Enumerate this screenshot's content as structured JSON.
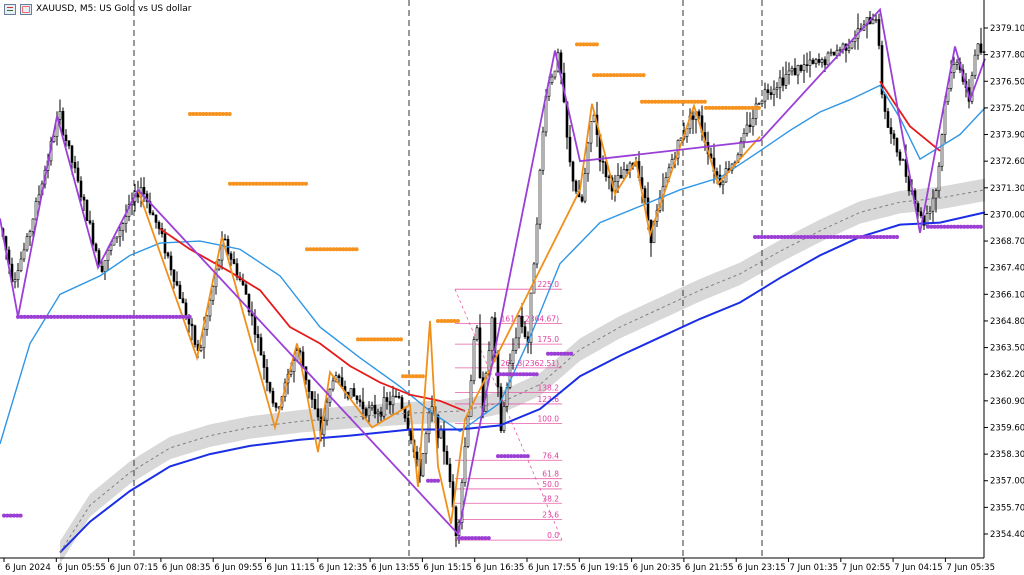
{
  "title": {
    "text": "XAUUSD, M5:  US Gold vs US dollar"
  },
  "chart_data": {
    "type": "candlestick",
    "title": "XAUUSD, M5:  US Gold vs US dollar",
    "ylim": [
      2353.5,
      2380.2
    ],
    "y_ticks": [
      "2379.10",
      "2377.80",
      "2376.50",
      "2375.20",
      "2373.90",
      "2372.60",
      "2371.30",
      "2370.00",
      "2368.70",
      "2367.40",
      "2366.10",
      "2364.80",
      "2363.50",
      "2362.20",
      "2360.90",
      "2359.60",
      "2358.30",
      "2357.00",
      "2355.70",
      "2354.40"
    ],
    "x_ticks": [
      "6 Jun 2024",
      "6 Jun 05:55",
      "6 Jun 07:15",
      "6 Jun 08:35",
      "6 Jun 09:55",
      "6 Jun 11:15",
      "6 Jun 12:35",
      "6 Jun 13:55",
      "6 Jun 15:15",
      "6 Jun 16:35",
      "6 Jun 17:55",
      "6 Jun 19:15",
      "6 Jun 20:35",
      "6 Jun 21:55",
      "6 Jun 23:15",
      "7 Jun 01:35",
      "7 Jun 02:55",
      "7 Jun 04:15",
      "7 Jun 05:35"
    ],
    "session_separators_at_bar": [
      134,
      409,
      683,
      762
    ],
    "price_series_anchors": [
      [
        0,
        2369.3
      ],
      [
        12,
        2366.8
      ],
      [
        25,
        2368.5
      ],
      [
        58,
        2374.9
      ],
      [
        100,
        2367.4
      ],
      [
        140,
        2371.4
      ],
      [
        160,
        2369.0
      ],
      [
        198,
        2363.1
      ],
      [
        222,
        2368.8
      ],
      [
        245,
        2366.1
      ],
      [
        275,
        2360.3
      ],
      [
        297,
        2363.5
      ],
      [
        320,
        2359.3
      ],
      [
        332,
        2362.1
      ],
      [
        370,
        2360.3
      ],
      [
        398,
        2361.1
      ],
      [
        408,
        2359.6
      ],
      [
        418,
        2357.2
      ],
      [
        430,
        2360.6
      ],
      [
        445,
        2358.3
      ],
      [
        456,
        2354.2
      ],
      [
        475,
        2364.8
      ],
      [
        482,
        2360.6
      ],
      [
        491,
        2364.8
      ],
      [
        500,
        2359.5
      ],
      [
        507,
        2362.0
      ],
      [
        518,
        2365.0
      ],
      [
        527,
        2363.8
      ],
      [
        545,
        2376.0
      ],
      [
        558,
        2377.8
      ],
      [
        568,
        2372.6
      ],
      [
        580,
        2370.2
      ],
      [
        592,
        2375.3
      ],
      [
        600,
        2372.5
      ],
      [
        612,
        2371.3
      ],
      [
        636,
        2372.7
      ],
      [
        650,
        2369.0
      ],
      [
        670,
        2372.6
      ],
      [
        694,
        2375.2
      ],
      [
        718,
        2371.6
      ],
      [
        735,
        2372.8
      ],
      [
        760,
        2375.8
      ],
      [
        790,
        2377.0
      ],
      [
        820,
        2377.4
      ],
      [
        850,
        2378.5
      ],
      [
        876,
        2379.8
      ],
      [
        880,
        2376.3
      ],
      [
        888,
        2374.0
      ],
      [
        900,
        2372.7
      ],
      [
        910,
        2371.3
      ],
      [
        922,
        2369.5
      ],
      [
        936,
        2371.4
      ],
      [
        945,
        2376.0
      ],
      [
        957,
        2377.8
      ],
      [
        967,
        2375.3
      ],
      [
        975,
        2378.3
      ],
      [
        985,
        2377.6
      ]
    ],
    "series": [
      {
        "name": "",
        "kind": "ema_light_blue",
        "color": "#2f96e6",
        "points": [
          [
            0,
            2358.8
          ],
          [
            30,
            2363.7
          ],
          [
            60,
            2366.1
          ],
          [
            100,
            2367.0
          ],
          [
            130,
            2368.0
          ],
          [
            160,
            2368.6
          ],
          [
            200,
            2368.7
          ],
          [
            240,
            2368.3
          ],
          [
            280,
            2367.0
          ],
          [
            320,
            2364.5
          ],
          [
            360,
            2363.0
          ],
          [
            400,
            2361.6
          ],
          [
            430,
            2360.4
          ],
          [
            460,
            2359.4
          ],
          [
            500,
            2360.8
          ],
          [
            530,
            2364.0
          ],
          [
            560,
            2367.6
          ],
          [
            600,
            2369.6
          ],
          [
            640,
            2370.4
          ],
          [
            680,
            2371.2
          ],
          [
            720,
            2371.8
          ],
          [
            760,
            2373.1
          ],
          [
            790,
            2374.1
          ],
          [
            820,
            2375.0
          ],
          [
            850,
            2375.6
          ],
          [
            880,
            2376.3
          ],
          [
            900,
            2374.7
          ],
          [
            920,
            2372.7
          ],
          [
            940,
            2373.3
          ],
          [
            960,
            2373.9
          ],
          [
            985,
            2375.2
          ]
        ]
      },
      {
        "name": "",
        "kind": "ema_red",
        "color": "#e61a1a",
        "points": [
          [
            160,
            2369.3
          ],
          [
            190,
            2368.3
          ],
          [
            230,
            2367.2
          ],
          [
            260,
            2366.3
          ],
          [
            290,
            2364.5
          ],
          [
            320,
            2363.7
          ],
          [
            350,
            2362.6
          ],
          [
            380,
            2361.8
          ],
          [
            410,
            2361.2
          ],
          [
            440,
            2360.9
          ],
          [
            465,
            2360.4
          ]
        ]
      },
      {
        "name": "",
        "kind": "ema_red",
        "color": "#e61a1a",
        "points": [
          [
            880,
            2376.5
          ],
          [
            910,
            2374.3
          ],
          [
            940,
            2373.1
          ]
        ]
      },
      {
        "name": "",
        "kind": "ema_blue",
        "color": "#1a2ee6",
        "points": [
          [
            60,
            2353.5
          ],
          [
            90,
            2355.0
          ],
          [
            130,
            2356.5
          ],
          [
            170,
            2357.7
          ],
          [
            210,
            2358.3
          ],
          [
            250,
            2358.7
          ],
          [
            300,
            2359.0
          ],
          [
            350,
            2359.2
          ],
          [
            410,
            2359.5
          ],
          [
            460,
            2359.5
          ],
          [
            500,
            2359.7
          ],
          [
            540,
            2360.5
          ],
          [
            580,
            2362.1
          ],
          [
            620,
            2363.1
          ],
          [
            660,
            2364.0
          ],
          [
            700,
            2364.9
          ],
          [
            740,
            2365.7
          ],
          [
            780,
            2366.9
          ],
          [
            820,
            2368.0
          ],
          [
            860,
            2368.9
          ],
          [
            900,
            2369.5
          ],
          [
            940,
            2369.6
          ],
          [
            985,
            2370.1
          ]
        ]
      },
      {
        "name": "",
        "kind": "band_mid",
        "color": "#808080",
        "points": [
          [
            60,
            2353.5
          ],
          [
            90,
            2355.8
          ],
          [
            130,
            2357.4
          ],
          [
            170,
            2358.6
          ],
          [
            210,
            2359.2
          ],
          [
            250,
            2359.6
          ],
          [
            300,
            2359.9
          ],
          [
            350,
            2360.1
          ],
          [
            410,
            2360.3
          ],
          [
            460,
            2360.4
          ],
          [
            500,
            2360.8
          ],
          [
            540,
            2361.7
          ],
          [
            580,
            2363.4
          ],
          [
            620,
            2364.5
          ],
          [
            660,
            2365.4
          ],
          [
            700,
            2366.3
          ],
          [
            740,
            2367.1
          ],
          [
            780,
            2368.2
          ],
          [
            820,
            2369.2
          ],
          [
            860,
            2370.1
          ],
          [
            900,
            2370.6
          ],
          [
            940,
            2370.8
          ],
          [
            985,
            2371.2
          ]
        ]
      }
    ],
    "band_width": 0.55,
    "zigzag_purple": [
      [
        0,
        2369.8
      ],
      [
        18,
        2365.0
      ],
      [
        57,
        2374.8
      ],
      [
        98,
        2367.4
      ],
      [
        138,
        2371.2
      ],
      [
        458,
        2354.4
      ],
      [
        555,
        2378.0
      ],
      [
        580,
        2372.6
      ],
      [
        760,
        2373.6
      ],
      [
        880,
        2380.0
      ],
      [
        920,
        2369.1
      ],
      [
        955,
        2378.2
      ],
      [
        970,
        2375.6
      ],
      [
        985,
        2377.6
      ]
    ],
    "zigzag_orange": [
      [
        138,
        2371.2
      ],
      [
        197,
        2363.0
      ],
      [
        222,
        2368.9
      ],
      [
        275,
        2359.6
      ],
      [
        297,
        2363.7
      ],
      [
        318,
        2358.4
      ],
      [
        330,
        2362.3
      ],
      [
        372,
        2359.6
      ],
      [
        410,
        2360.7
      ],
      [
        418,
        2356.7
      ],
      [
        430,
        2364.8
      ],
      [
        438,
        2357.7
      ],
      [
        451,
        2354.9
      ],
      [
        465,
        2360.0
      ],
      [
        580,
        2371.2
      ],
      [
        592,
        2375.4
      ],
      [
        615,
        2371.0
      ],
      [
        636,
        2372.6
      ],
      [
        650,
        2369.0
      ],
      [
        694,
        2375.3
      ],
      [
        718,
        2371.5
      ],
      [
        760,
        2373.8
      ]
    ],
    "orange_levels": [
      [
        190,
        230,
        2374.9
      ],
      [
        230,
        307,
        2371.5
      ],
      [
        307,
        358,
        2368.3
      ],
      [
        358,
        403,
        2363.9
      ],
      [
        403,
        425,
        2362.1
      ],
      [
        438,
        460,
        2364.8
      ],
      [
        577,
        597,
        2378.3
      ],
      [
        594,
        645,
        2376.8
      ],
      [
        642,
        708,
        2375.5
      ],
      [
        706,
        760,
        2375.2
      ]
    ],
    "purple_levels": [
      [
        18,
        190,
        2365.0
      ],
      [
        4,
        22,
        2355.3
      ],
      [
        755,
        900,
        2368.9
      ],
      [
        928,
        981,
        2369.4
      ],
      [
        498,
        528,
        2358.2
      ],
      [
        497,
        538,
        2362.2
      ],
      [
        548,
        574,
        2363.2
      ],
      [
        459,
        492,
        2354.2
      ],
      [
        428,
        440,
        2357.0
      ]
    ],
    "fibonacci": {
      "labels": [
        "225.0",
        "161.8(2364.67)",
        "175.0",
        "261.8(2362.51)",
        "138.2",
        "123.6",
        "100.0",
        "76.4",
        "61.8",
        "50.0",
        "38.2",
        "23.6",
        "0.0"
      ],
      "prices": [
        2366.35,
        2364.67,
        2363.67,
        2362.51,
        2361.3,
        2360.75,
        2359.8,
        2358.0,
        2357.1,
        2356.6,
        2355.9,
        2355.1,
        2354.1
      ]
    }
  }
}
